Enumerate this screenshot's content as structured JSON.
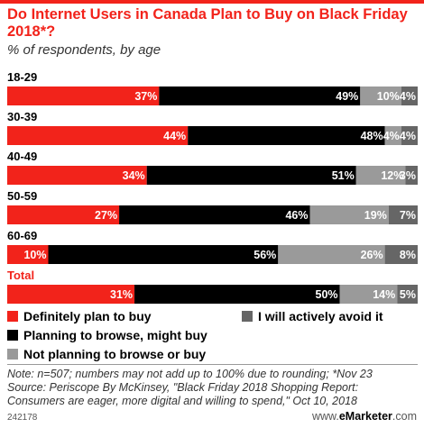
{
  "title": "Do Internet Users in Canada Plan to Buy on Black Friday 2018*?",
  "subtitle": "% of respondents, by age",
  "chart_data": {
    "type": "bar",
    "orientation": "horizontal",
    "stacked": true,
    "categories": [
      "18-29",
      "30-39",
      "40-49",
      "50-59",
      "60-69",
      "Total"
    ],
    "series": [
      {
        "name": "Definitely plan to buy",
        "color": "#f2231b",
        "values": [
          37,
          44,
          34,
          27,
          10,
          31
        ],
        "labels": [
          "37%",
          "44%",
          "34%",
          "27%",
          "10%",
          "31%"
        ]
      },
      {
        "name": "Planning to browse, might buy",
        "color": "#000000",
        "values": [
          49,
          48,
          51,
          46,
          56,
          50
        ],
        "labels": [
          "49%",
          "48%",
          "51%",
          "46%",
          "56%",
          "50%"
        ]
      },
      {
        "name": "Not planning to browse or buy",
        "color": "#9a9a9a",
        "values": [
          10,
          4,
          12,
          19,
          26,
          14
        ],
        "labels": [
          "10%",
          "4%",
          "12%",
          "19%",
          "26%",
          "14%"
        ]
      },
      {
        "name": "I will actively avoid it",
        "color": "#666666",
        "values": [
          4,
          4,
          3,
          7,
          8,
          5
        ],
        "labels": [
          "4%",
          "4%",
          "3%",
          "7%",
          "8%",
          "5%"
        ]
      }
    ],
    "total_category_color": "#f2231b",
    "legend_position": "bottom",
    "grid": false
  },
  "legend": [
    {
      "label": "Definitely plan to buy",
      "color": "#f2231b"
    },
    {
      "label": "I will actively avoid it",
      "color": "#666666"
    },
    {
      "label": "Planning to browse, might buy",
      "color": "#000000"
    },
    {
      "label": "Not planning to browse or buy",
      "color": "#9a9a9a"
    }
  ],
  "note": "Note: n=507; numbers may not add up to 100% due to rounding; *Nov 23",
  "source": "Source: Periscope By McKinsey, \"Black Friday 2018 Shopping Report: Consumers are eager, more digital and willing to spend,\" Oct 10, 2018",
  "footer": {
    "id": "242178",
    "site_prefix": "www.",
    "site_brand": "eMarketer",
    "site_suffix": ".com"
  }
}
